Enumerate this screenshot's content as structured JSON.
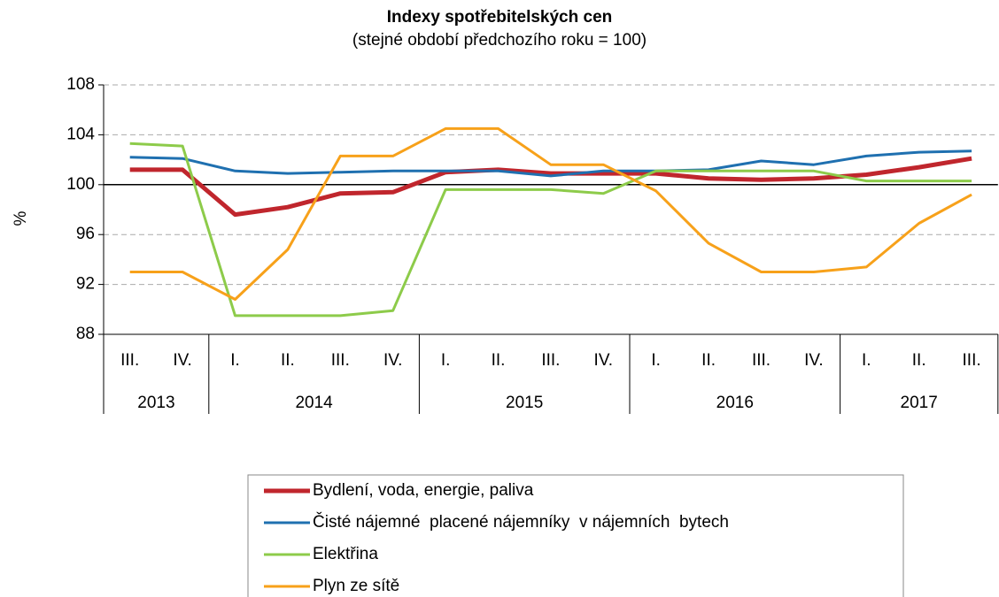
{
  "chart_data": {
    "type": "line",
    "title": "Indexy spotřebitelských  cen",
    "subtitle": "(stejné období předchozího roku = 100)",
    "y_label": "%",
    "categories": [
      "III.",
      "IV.",
      "I.",
      "II.",
      "III.",
      "IV.",
      "I.",
      "II.",
      "III.",
      "IV.",
      "I.",
      "II.",
      "III.",
      "IV.",
      "I.",
      "II.",
      "III."
    ],
    "category_groups": [
      {
        "label": "2013",
        "span": 2
      },
      {
        "label": "2014",
        "span": 4
      },
      {
        "label": "2015",
        "span": 4
      },
      {
        "label": "2016",
        "span": 4
      },
      {
        "label": "2017",
        "span": 3
      }
    ],
    "ylim": [
      88,
      108
    ],
    "yticks": [
      88,
      92,
      96,
      100,
      104,
      108
    ],
    "grid": true,
    "reference_line": 100,
    "legend": "bottom",
    "series": [
      {
        "name": "Bydlení, voda, energie, paliva",
        "color": "#c0262d",
        "width": 5,
        "values": [
          101.2,
          101.2,
          97.6,
          98.2,
          99.3,
          99.4,
          101.0,
          101.2,
          100.9,
          100.9,
          100.9,
          100.5,
          100.4,
          100.5,
          100.8,
          101.4,
          102.1
        ]
      },
      {
        "name": "Čisté nájemné  placené nájemníky  v nájemních  bytech",
        "color": "#1f70b0",
        "width": 3,
        "values": [
          102.2,
          102.1,
          101.1,
          100.9,
          101.0,
          101.1,
          101.1,
          101.1,
          100.7,
          101.1,
          101.1,
          101.2,
          101.9,
          101.6,
          102.3,
          102.6,
          102.7
        ]
      },
      {
        "name": "Elektřina",
        "color": "#8dcb4a",
        "width": 3,
        "values": [
          103.3,
          103.1,
          89.5,
          89.5,
          89.5,
          89.9,
          99.6,
          99.6,
          99.6,
          99.3,
          101.1,
          101.1,
          101.1,
          101.1,
          100.3,
          100.3,
          100.3
        ]
      },
      {
        "name": "Plyn ze sítě",
        "color": "#f7a11a",
        "width": 3,
        "values": [
          93.0,
          93.0,
          90.8,
          94.8,
          102.3,
          102.3,
          104.5,
          104.5,
          101.6,
          101.6,
          99.5,
          95.3,
          93.0,
          93.0,
          93.4,
          96.9,
          99.2
        ]
      }
    ]
  }
}
